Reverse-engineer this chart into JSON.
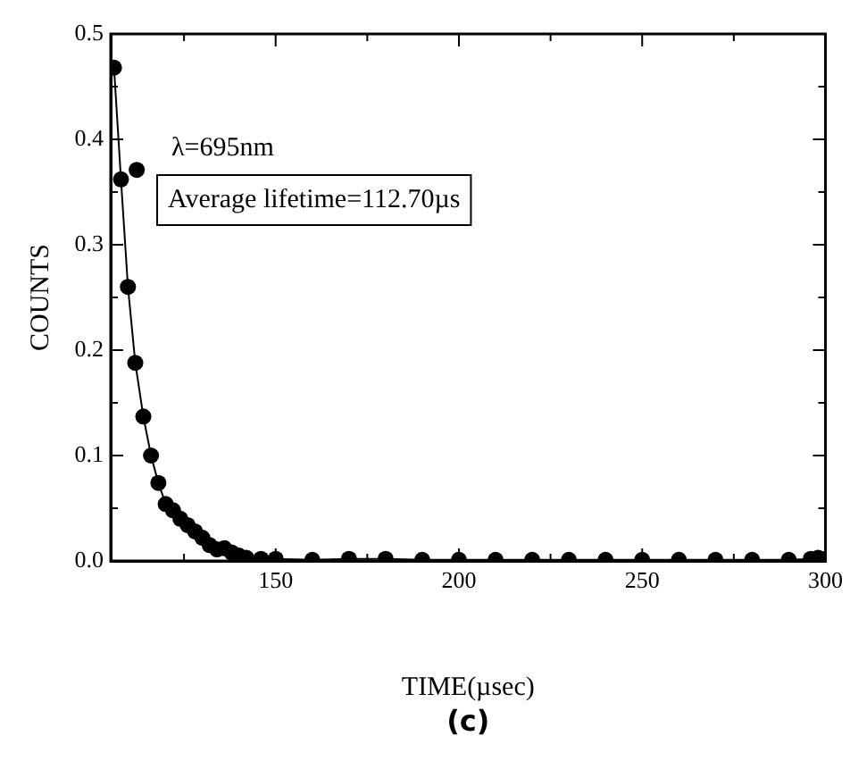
{
  "chart_data": {
    "type": "line",
    "xlabel": "TIME(µsec)",
    "ylabel": "COUNTS",
    "annotations": [
      "λ=695nm",
      "Average lifetime=112.70µs",
      "(c)"
    ],
    "xlim": [
      105,
      300
    ],
    "ylim": [
      0,
      0.5
    ],
    "xticks": [
      {
        "value": 125,
        "label": null
      },
      150,
      {
        "value": 175,
        "label": null
      },
      200,
      {
        "value": 225,
        "label": null
      },
      250,
      {
        "value": 275,
        "label": null
      },
      300
    ],
    "yticks": [
      {
        "value": 0,
        "label": "0.0"
      },
      {
        "value": 0.05,
        "label": null
      },
      {
        "value": 0.1,
        "label": "0.1"
      },
      {
        "value": 0.15,
        "label": null
      },
      {
        "value": 0.2,
        "label": "0.2"
      },
      {
        "value": 0.25,
        "label": null
      },
      {
        "value": 0.3,
        "label": "0.3"
      },
      {
        "value": 0.35,
        "label": null
      },
      {
        "value": 0.4,
        "label": "0.4"
      },
      {
        "value": 0.45,
        "label": null
      },
      {
        "value": 0.5,
        "label": "0.5"
      }
    ],
    "grid": false,
    "legend": false,
    "marker": "circle",
    "line_style": "solid",
    "series": [
      {
        "color": "#000000",
        "x": [
          105.9,
          107.8,
          109.7,
          111.7,
          113.9,
          116,
          118,
          120,
          122,
          124,
          126,
          128,
          130,
          132,
          134,
          136,
          138,
          140,
          142,
          146,
          150,
          160,
          170,
          180,
          190,
          200,
          210,
          220,
          230,
          240,
          250,
          260,
          270,
          280,
          290,
          296,
          298,
          300
        ],
        "values": [
          0.468,
          0.362,
          0.26,
          0.188,
          0.137,
          0.1,
          0.074,
          0.054,
          0.048,
          0.04,
          0.034,
          0.028,
          0.022,
          0.015,
          0.011,
          0.012,
          0.008,
          0.005,
          0.003,
          0.002,
          0.002,
          0.001,
          0.002,
          0.002,
          0.001,
          0.001,
          0.001,
          0.001,
          0.001,
          0.001,
          0.001,
          0.001,
          0.001,
          0.001,
          0.001,
          0.002,
          0.003,
          0.002
        ]
      },
      {
        "type": "scatter",
        "color": "#000000",
        "x": [
          112.1
        ],
        "values": [
          0.371
        ]
      }
    ]
  }
}
